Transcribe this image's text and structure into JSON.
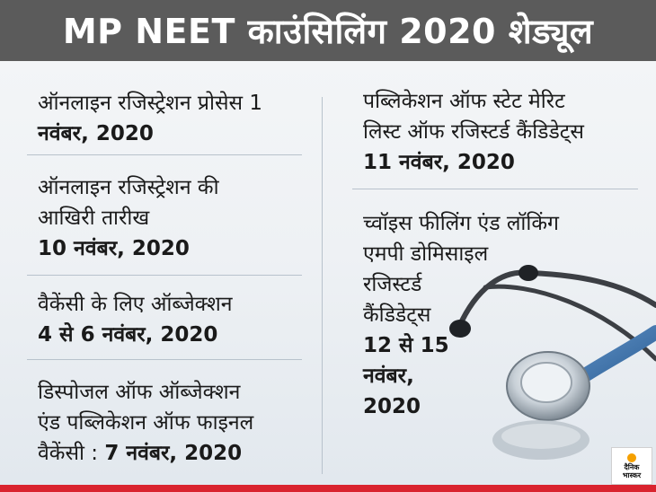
{
  "header": {
    "title": "MP NEET काउंसिलिंग 2020 शेड्यूल"
  },
  "left_column": [
    {
      "desc_lines": [
        "ऑनलाइन रजिस्ट्रेशन प्रोसेस  1"
      ],
      "date_lines": [
        "नवंबर, 2020"
      ]
    },
    {
      "desc_lines": [
        "ऑनलाइन रजिस्ट्रेशन की",
        "आखिरी तारीख"
      ],
      "date_lines": [
        "10 नवंबर, 2020"
      ]
    },
    {
      "desc_lines": [
        "वैकेंसी के लिए ऑब्जेक्शन"
      ],
      "date_lines": [
        "4 से 6 नवंबर, 2020"
      ]
    },
    {
      "desc_lines": [
        "डिस्पोजल ऑफ ऑब्जेक्शन",
        "एंड पब्लिकेशन ऑफ फाइनल",
        "वैकेंसी : "
      ],
      "inline_date": "7 नवंबर, 2020"
    }
  ],
  "right_column": [
    {
      "desc_lines": [
        "पब्लिकेशन ऑफ स्टेट मेरिट",
        "लिस्ट ऑफ रजिस्टर्ड कैंडिडेट्स"
      ],
      "date_lines": [
        "11 नवंबर, 2020"
      ]
    },
    {
      "desc_lines": [
        "च्वॉइस फीलिंग एंड लॉकिंग",
        "एमपी डोमिसाइल",
        "रजिस्टर्ड",
        "कैंडिडेट्स"
      ],
      "date_lines": [
        "12 से 15",
        "नवंबर,",
        "2020"
      ]
    }
  ],
  "logo": {
    "line1": "दैनिक",
    "line2": "भास्कर"
  },
  "colors": {
    "header_bg": "#5b5b5b",
    "accent_bar": "#d9232e",
    "logo_dot": "#f5a000"
  }
}
